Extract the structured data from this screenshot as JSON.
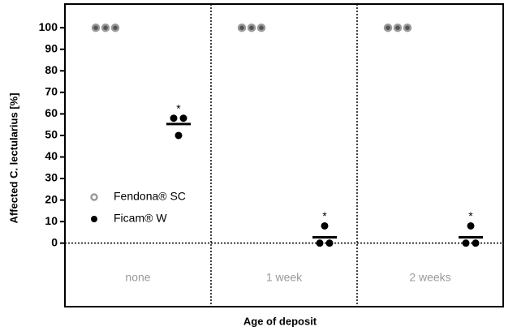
{
  "chart_data": {
    "type": "dot",
    "ylabel": "Affected C. lectularius [%]",
    "xlabel": "Age of deposit",
    "categories": [
      "none",
      "1 week",
      "2 weeks"
    ],
    "series": [
      {
        "name": "Fendona® SC",
        "color": "#9a9a9a",
        "values": [
          [
            100,
            100,
            100
          ],
          [
            100,
            100,
            100
          ],
          [
            100,
            100,
            100
          ]
        ]
      },
      {
        "name": "Ficam® W",
        "color": "#000000",
        "values": [
          [
            58,
            58,
            50
          ],
          [
            8,
            0,
            0
          ],
          [
            8,
            0,
            0
          ]
        ],
        "means": [
          55.3,
          2.7,
          2.7
        ],
        "annotations": [
          "*",
          "*",
          "*"
        ]
      }
    ],
    "ylim": [
      -29.5,
      111
    ],
    "yticks": [
      0,
      10,
      20,
      30,
      40,
      50,
      60,
      70,
      80,
      90,
      100
    ]
  }
}
